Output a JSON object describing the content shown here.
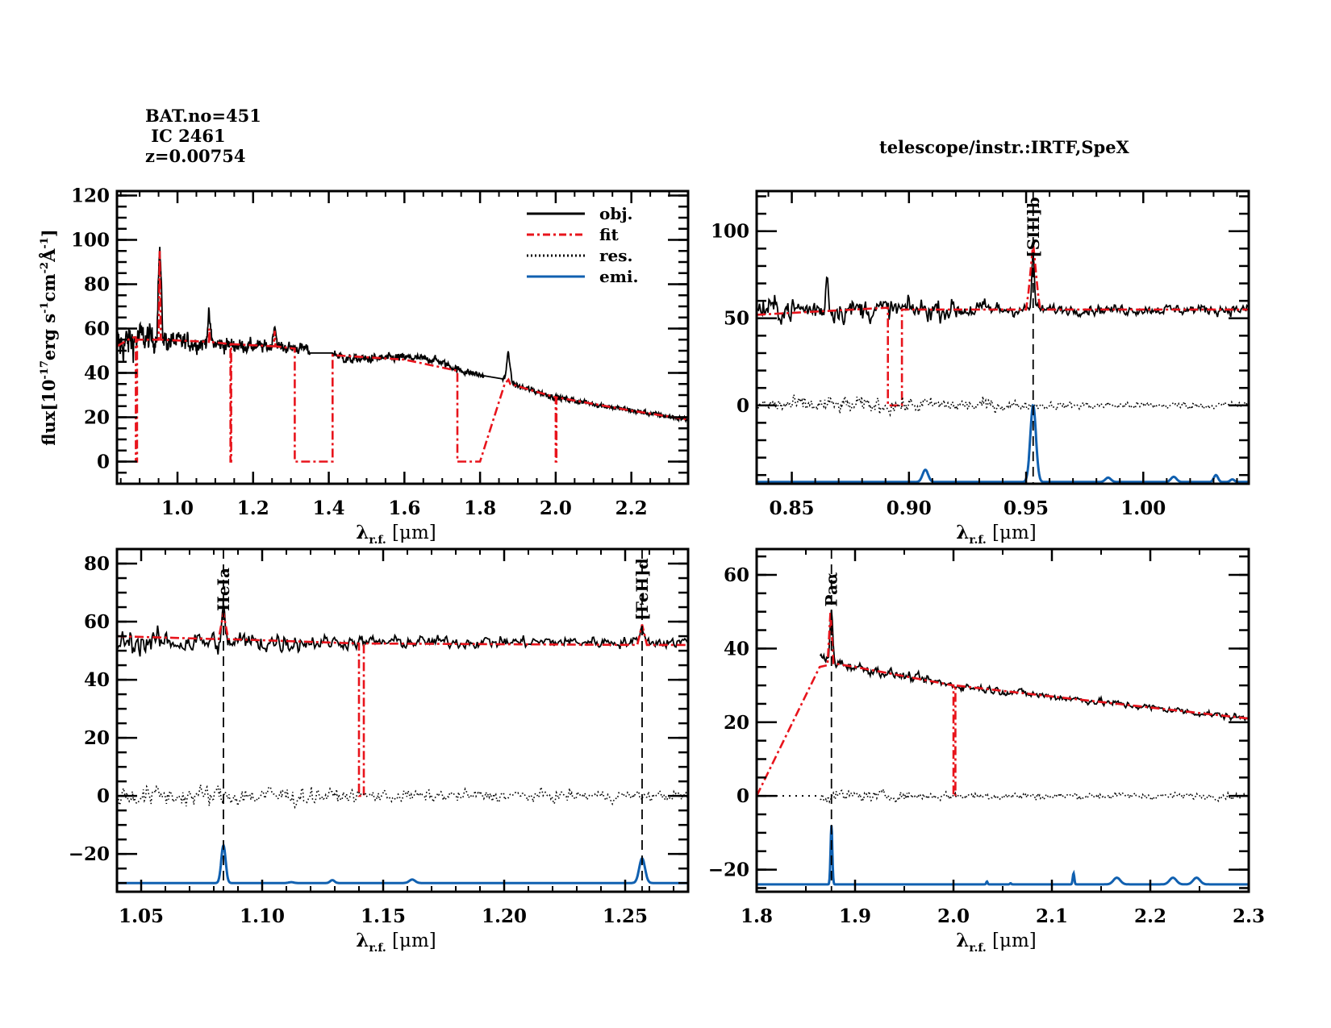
{
  "header": {
    "bat_no": "BAT.no=451",
    "object_name": " IC 2461",
    "redshift": "z=0.00754",
    "telescope": "telescope/instr.:IRTF,SpeX"
  },
  "colors": {
    "obj": "#000000",
    "fit": "#e8141c",
    "res": "#000000",
    "emi": "#1060b0"
  },
  "legend": [
    {
      "key": "obj",
      "label": "obj.",
      "style": "solid"
    },
    {
      "key": "fit",
      "label": "fit",
      "style": "dashdot"
    },
    {
      "key": "res",
      "label": "res.",
      "style": "dotted"
    },
    {
      "key": "emi",
      "label": "emi.",
      "style": "solid"
    }
  ],
  "chart_data": [
    {
      "id": "full",
      "type": "line",
      "title": "",
      "xlabel": "λ_r.f. [μm]",
      "ylabel": "flux[10^-17 erg s^-1 cm^-2 Å^-1]",
      "xlim": [
        0.84,
        2.35
      ],
      "ylim": [
        -10,
        122
      ],
      "xticks": [
        1.0,
        1.2,
        1.4,
        1.6,
        1.8,
        2.0,
        2.2
      ],
      "xtick_labels": [
        "1.0",
        "1.2",
        "1.4",
        "1.6",
        "1.8",
        "2.0",
        "2.2"
      ],
      "yticks": [
        0,
        20,
        40,
        60,
        80,
        100,
        120
      ],
      "ytick_labels": [
        "0",
        "20",
        "40",
        "60",
        "80",
        "100",
        "120"
      ],
      "legend_position": "top-right",
      "series": [
        {
          "name": "obj.",
          "key": "obj",
          "continuum": [
            [
              0.84,
              52
            ],
            [
              0.9,
              56
            ],
            [
              1.0,
              54
            ],
            [
              1.2,
              52
            ],
            [
              1.34,
              51
            ],
            [
              1.35,
              49
            ],
            [
              1.41,
              49
            ],
            [
              1.45,
              46
            ],
            [
              1.6,
              47
            ],
            [
              1.68,
              46
            ],
            [
              1.75,
              41
            ],
            [
              1.8,
              39
            ],
            [
              1.87,
              37
            ],
            [
              1.9,
              34
            ],
            [
              2.0,
              29
            ],
            [
              2.2,
              23
            ],
            [
              2.35,
              19
            ]
          ],
          "gaps": [
            [
              1.35,
              1.41
            ],
            [
              1.81,
              1.86
            ]
          ],
          "noise": [
            [
              0.84,
              12
            ],
            [
              1.0,
              6
            ],
            [
              1.2,
              4
            ],
            [
              1.35,
              3
            ],
            [
              1.8,
              2
            ],
            [
              2.35,
              1.5
            ]
          ],
          "peaks": [
            [
              0.953,
              40
            ],
            [
              1.083,
              12
            ],
            [
              1.257,
              10
            ],
            [
              1.875,
              13
            ]
          ]
        },
        {
          "name": "fit",
          "key": "fit",
          "points": [
            [
              0.84,
              52
            ],
            [
              0.88,
              56
            ],
            [
              0.89,
              56
            ],
            [
              0.89,
              0
            ],
            [
              0.893,
              0
            ],
            [
              0.893,
              55
            ],
            [
              0.95,
              55
            ],
            [
              0.953,
              95
            ],
            [
              0.956,
              55
            ],
            [
              1.083,
              54
            ],
            [
              1.084,
              60
            ],
            [
              1.086,
              54
            ],
            [
              1.14,
              53
            ],
            [
              1.14,
              0
            ],
            [
              1.142,
              0
            ],
            [
              1.142,
              53
            ],
            [
              1.255,
              52
            ],
            [
              1.257,
              59
            ],
            [
              1.259,
              52
            ],
            [
              1.31,
              51
            ],
            [
              1.31,
              0
            ],
            [
              1.41,
              0
            ],
            [
              1.41,
              48
            ],
            [
              1.6,
              46
            ],
            [
              1.74,
              41
            ],
            [
              1.74,
              0
            ],
            [
              1.8,
              0
            ],
            [
              1.865,
              35
            ],
            [
              1.875,
              37
            ],
            [
              1.88,
              35
            ],
            [
              2.0,
              29
            ],
            [
              2.0,
              0
            ],
            [
              2.002,
              0
            ],
            [
              2.002,
              29
            ],
            [
              2.2,
              23
            ],
            [
              2.35,
              19
            ]
          ]
        }
      ]
    },
    {
      "id": "siii",
      "type": "line",
      "xlabel": "λ_r.f. [μm]",
      "xlim": [
        0.835,
        1.045
      ],
      "ylim": [
        -45,
        123
      ],
      "xticks": [
        0.85,
        0.9,
        0.95,
        1.0
      ],
      "xtick_labels": [
        "0.85",
        "0.90",
        "0.95",
        "1.00"
      ],
      "yticks": [
        0,
        50,
        100
      ],
      "ytick_labels": [
        "0",
        "50",
        "100"
      ],
      "line_markers": [
        {
          "x": 0.953,
          "label": "[SIII]b"
        }
      ],
      "series": [
        {
          "name": "obj.",
          "key": "obj",
          "level": 55,
          "noise": [
            [
              0.835,
              10
            ],
            [
              0.93,
              8
            ],
            [
              0.95,
              4
            ],
            [
              1.045,
              4
            ]
          ],
          "peaks": [
            [
              0.953,
              33
            ],
            [
              0.865,
              20
            ]
          ]
        },
        {
          "name": "fit",
          "key": "fit",
          "points": [
            [
              0.835,
              52
            ],
            [
              0.89,
              56
            ],
            [
              0.891,
              56
            ],
            [
              0.891,
              0
            ],
            [
              0.897,
              0
            ],
            [
              0.897,
              55
            ],
            [
              0.95,
              55
            ],
            [
              0.951,
              65
            ],
            [
              0.953,
              93
            ],
            [
              0.955,
              65
            ],
            [
              0.956,
              55
            ],
            [
              1.045,
              55
            ]
          ]
        },
        {
          "name": "res.",
          "key": "res",
          "level": 0,
          "noise": [
            [
              0.835,
              7
            ],
            [
              0.93,
              6
            ],
            [
              0.95,
              3
            ],
            [
              1.045,
              3
            ]
          ]
        },
        {
          "name": "emi.",
          "key": "emi",
          "baseline": -44,
          "peaks": [
            [
              0.907,
              7,
              0.0012
            ],
            [
              0.953,
              44,
              0.0012
            ],
            [
              0.985,
              2.5,
              0.0012
            ],
            [
              1.013,
              3,
              0.0012
            ],
            [
              1.031,
              4,
              0.0009
            ],
            [
              1.038,
              1.5,
              0.0009
            ]
          ]
        }
      ]
    },
    {
      "id": "hei",
      "type": "line",
      "xlabel": "λ_r.f. [μm]",
      "xlim": [
        1.04,
        1.276
      ],
      "ylim": [
        -33,
        85
      ],
      "xticks": [
        1.05,
        1.1,
        1.15,
        1.2,
        1.25
      ],
      "xtick_labels": [
        "1.05",
        "1.10",
        "1.15",
        "1.20",
        "1.25"
      ],
      "yticks": [
        -20,
        0,
        20,
        40,
        60,
        80
      ],
      "ytick_labels": [
        "−20",
        "0",
        "20",
        "40",
        "60",
        "80"
      ],
      "line_markers": [
        {
          "x": 1.084,
          "label": "HeIa"
        },
        {
          "x": 1.257,
          "label": "[FeII]d"
        }
      ],
      "series": [
        {
          "name": "obj.",
          "key": "obj",
          "level": 53,
          "noise": [
            [
              1.04,
              6
            ],
            [
              1.11,
              5
            ],
            [
              1.13,
              3
            ],
            [
              1.276,
              2.5
            ]
          ],
          "peaks": [
            [
              1.084,
              10
            ],
            [
              1.257,
              7
            ]
          ]
        },
        {
          "name": "fit",
          "key": "fit",
          "points": [
            [
              1.04,
              55
            ],
            [
              1.082,
              54
            ],
            [
              1.084,
              63
            ],
            [
              1.086,
              54
            ],
            [
              1.14,
              52.5
            ],
            [
              1.14,
              0
            ],
            [
              1.142,
              0
            ],
            [
              1.142,
              52.5
            ],
            [
              1.255,
              52
            ],
            [
              1.257,
              59
            ],
            [
              1.259,
              52
            ],
            [
              1.276,
              52
            ]
          ]
        },
        {
          "name": "res.",
          "key": "res",
          "level": 0,
          "noise": [
            [
              1.04,
              5
            ],
            [
              1.11,
              5
            ],
            [
              1.13,
              3
            ],
            [
              1.276,
              2.5
            ]
          ]
        },
        {
          "name": "emi.",
          "key": "emi",
          "baseline": -30,
          "peaks": [
            [
              1.084,
              13,
              0.0009
            ],
            [
              1.112,
              0.3,
              0.001
            ],
            [
              1.129,
              1,
              0.0009
            ],
            [
              1.162,
              1.2,
              0.0012
            ],
            [
              1.257,
              8.5,
              0.0012
            ]
          ]
        }
      ]
    },
    {
      "id": "paa",
      "type": "line",
      "xlabel": "λ_r.f. [μm]",
      "xlim": [
        1.8,
        2.3
      ],
      "ylim": [
        -26,
        67
      ],
      "xticks": [
        1.8,
        1.9,
        2.0,
        2.1,
        2.2,
        2.3
      ],
      "xtick_labels": [
        "1.8",
        "1.9",
        "2.0",
        "2.1",
        "2.2",
        "2.3"
      ],
      "yticks": [
        -20,
        0,
        20,
        40,
        60
      ],
      "ytick_labels": [
        "−20",
        "0",
        "20",
        "40",
        "60"
      ],
      "line_markers": [
        {
          "x": 1.876,
          "label": "Paα"
        }
      ],
      "series": [
        {
          "name": "obj.",
          "key": "obj",
          "continuum": [
            [
              1.8,
              39
            ],
            [
              1.826,
              39
            ],
            [
              1.827,
              38
            ],
            [
              1.864,
              38
            ],
            [
              1.87,
              37
            ],
            [
              1.9,
              35
            ],
            [
              2.0,
              30
            ],
            [
              2.1,
              27
            ],
            [
              2.2,
              24
            ],
            [
              2.3,
              21
            ]
          ],
          "noise_start": 1.864,
          "noise": [
            [
              1.864,
              2
            ],
            [
              2.0,
              1.5
            ],
            [
              2.3,
              1.2
            ]
          ],
          "peaks": [
            [
              1.876,
              14
            ]
          ]
        },
        {
          "name": "fit",
          "key": "fit",
          "points": [
            [
              1.8,
              0
            ],
            [
              1.864,
              35
            ],
            [
              1.872,
              35.5
            ],
            [
              1.875,
              50
            ],
            [
              1.878,
              36
            ],
            [
              1.9,
              35
            ],
            [
              2.0,
              30
            ],
            [
              2.0,
              0
            ],
            [
              2.002,
              0
            ],
            [
              2.002,
              30
            ],
            [
              2.1,
              27
            ],
            [
              2.2,
              24
            ],
            [
              2.3,
              21
            ]
          ]
        },
        {
          "name": "res.",
          "key": "res",
          "level": 0,
          "noise_start": 1.864,
          "noise": [
            [
              1.864,
              2.2
            ],
            [
              2.0,
              1.5
            ],
            [
              2.3,
              1.2
            ]
          ]
        },
        {
          "name": "emi.",
          "key": "emi",
          "baseline": -24,
          "peaks": [
            [
              1.876,
              16,
              0.0009
            ],
            [
              2.034,
              0.8,
              0.0007
            ],
            [
              2.058,
              0.3,
              0.0007
            ],
            [
              2.122,
              3,
              0.0008
            ],
            [
              2.166,
              1.8,
              0.0035
            ],
            [
              2.223,
              1.8,
              0.0035
            ],
            [
              2.247,
              1.8,
              0.0035
            ]
          ]
        }
      ]
    }
  ]
}
